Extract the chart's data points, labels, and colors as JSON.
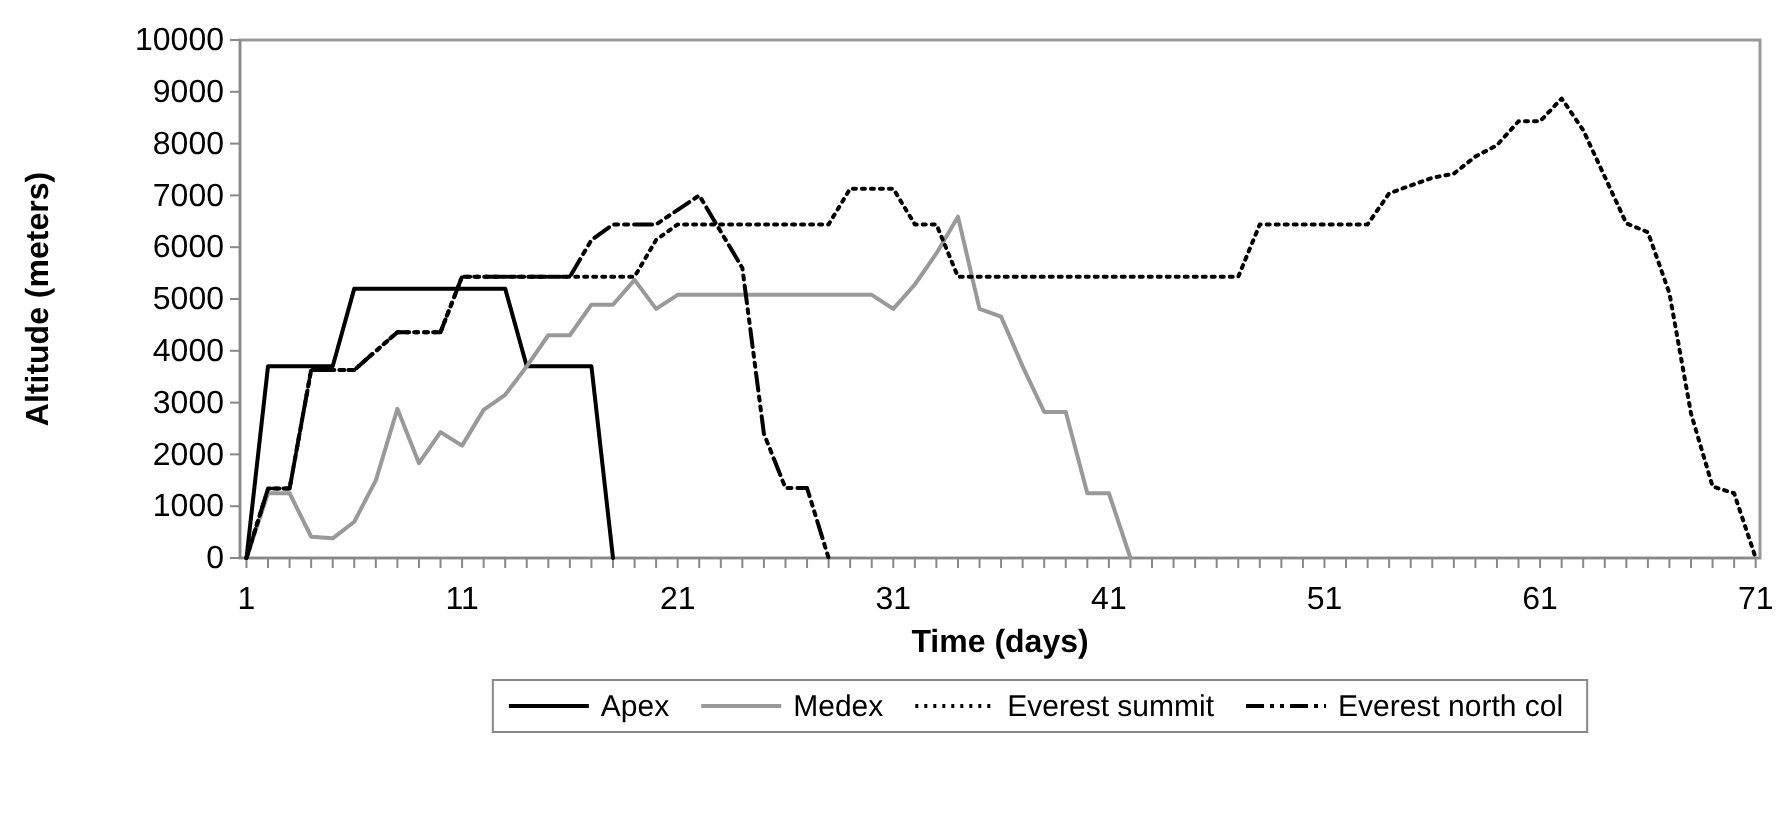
{
  "chart_data": {
    "type": "line",
    "xlabel": "Time (days)",
    "ylabel": "Altitude (meters)",
    "xlim": [
      0.7,
      71.2
    ],
    "xticks": [
      1,
      {
        "value": 2,
        "label": null
      },
      {
        "value": 3,
        "label": null
      },
      {
        "value": 4,
        "label": null
      },
      {
        "value": 5,
        "label": null
      },
      {
        "value": 6,
        "label": null
      },
      {
        "value": 7,
        "label": null
      },
      {
        "value": 8,
        "label": null
      },
      {
        "value": 9,
        "label": null
      },
      {
        "value": 10,
        "label": null
      },
      11,
      {
        "value": 12,
        "label": null
      },
      {
        "value": 13,
        "label": null
      },
      {
        "value": 14,
        "label": null
      },
      {
        "value": 15,
        "label": null
      },
      {
        "value": 16,
        "label": null
      },
      {
        "value": 17,
        "label": null
      },
      {
        "value": 18,
        "label": null
      },
      {
        "value": 19,
        "label": null
      },
      {
        "value": 20,
        "label": null
      },
      21,
      {
        "value": 22,
        "label": null
      },
      {
        "value": 23,
        "label": null
      },
      {
        "value": 24,
        "label": null
      },
      {
        "value": 25,
        "label": null
      },
      {
        "value": 26,
        "label": null
      },
      {
        "value": 27,
        "label": null
      },
      {
        "value": 28,
        "label": null
      },
      {
        "value": 29,
        "label": null
      },
      {
        "value": 30,
        "label": null
      },
      31,
      {
        "value": 32,
        "label": null
      },
      {
        "value": 33,
        "label": null
      },
      {
        "value": 34,
        "label": null
      },
      {
        "value": 35,
        "label": null
      },
      {
        "value": 36,
        "label": null
      },
      {
        "value": 37,
        "label": null
      },
      {
        "value": 38,
        "label": null
      },
      {
        "value": 39,
        "label": null
      },
      {
        "value": 40,
        "label": null
      },
      41,
      {
        "value": 42,
        "label": null
      },
      {
        "value": 43,
        "label": null
      },
      {
        "value": 44,
        "label": null
      },
      {
        "value": 45,
        "label": null
      },
      {
        "value": 46,
        "label": null
      },
      {
        "value": 47,
        "label": null
      },
      {
        "value": 48,
        "label": null
      },
      {
        "value": 49,
        "label": null
      },
      {
        "value": 50,
        "label": null
      },
      51,
      {
        "value": 52,
        "label": null
      },
      {
        "value": 53,
        "label": null
      },
      {
        "value": 54,
        "label": null
      },
      {
        "value": 55,
        "label": null
      },
      {
        "value": 56,
        "label": null
      },
      {
        "value": 57,
        "label": null
      },
      {
        "value": 58,
        "label": null
      },
      {
        "value": 59,
        "label": null
      },
      {
        "value": 60,
        "label": null
      },
      61,
      {
        "value": 62,
        "label": null
      },
      {
        "value": 63,
        "label": null
      },
      {
        "value": 64,
        "label": null
      },
      {
        "value": 65,
        "label": null
      },
      {
        "value": 66,
        "label": null
      },
      {
        "value": 67,
        "label": null
      },
      {
        "value": 68,
        "label": null
      },
      {
        "value": 69,
        "label": null
      },
      {
        "value": 70,
        "label": null
      },
      71
    ],
    "ylim": [
      0,
      10000
    ],
    "yticks": [
      0,
      1000,
      2000,
      3000,
      4000,
      5000,
      6000,
      7000,
      8000,
      9000,
      10000
    ],
    "grid": false,
    "legend": "bottom",
    "marker": "none",
    "series": [
      {
        "name": "Apex",
        "color": "#000000",
        "line_style": "solid",
        "x": [
          1,
          2,
          5,
          6,
          13,
          14,
          17,
          18
        ],
        "values": [
          0,
          3700,
          3700,
          5200,
          5200,
          3700,
          3700,
          0
        ]
      },
      {
        "name": "Medex",
        "color": "#999999",
        "line_style": "solid",
        "x": [
          1,
          2,
          3,
          4,
          5,
          6,
          7,
          8,
          9,
          10,
          11,
          12,
          13,
          14,
          15,
          16,
          17,
          18,
          19,
          20,
          21,
          30,
          31,
          32,
          33,
          34,
          35,
          36,
          37,
          38,
          39,
          40,
          41,
          42
        ],
        "values": [
          0,
          1250,
          1250,
          410,
          380,
          700,
          1500,
          2880,
          1830,
          2430,
          2170,
          2860,
          3150,
          3700,
          4300,
          4300,
          4890,
          4890,
          5370,
          4810,
          5080,
          5080,
          4810,
          5280,
          5880,
          6590,
          4810,
          4660,
          3700,
          2820,
          2820,
          1250,
          1250,
          0
        ]
      },
      {
        "name": "Everest summit",
        "color": "#000000",
        "line_style": "dotted",
        "x": [
          1,
          2,
          3,
          4,
          6,
          8,
          10,
          11,
          19,
          20,
          21,
          28,
          29,
          31,
          32,
          33,
          34,
          47,
          48,
          53,
          54,
          56,
          57,
          58,
          59,
          60,
          61,
          62,
          63,
          64,
          65,
          66,
          67,
          68,
          69,
          70,
          71
        ],
        "values": [
          0,
          1340,
          1340,
          3630,
          3630,
          4360,
          4360,
          5430,
          5430,
          6140,
          6440,
          6440,
          7130,
          7130,
          6440,
          6440,
          5430,
          5430,
          6440,
          6440,
          7040,
          7340,
          7420,
          7750,
          7970,
          8430,
          8430,
          8870,
          8260,
          7360,
          6460,
          6290,
          5110,
          2790,
          1380,
          1250,
          0
        ]
      },
      {
        "name": "Everest north col",
        "color": "#000000",
        "line_style": "dashed",
        "x": [
          1,
          2,
          3,
          4,
          6,
          8,
          10,
          11,
          16,
          17,
          18,
          20,
          22,
          24,
          25,
          26,
          27,
          28
        ],
        "values": [
          0,
          1340,
          1340,
          3630,
          3630,
          4360,
          4360,
          5430,
          5430,
          6140,
          6440,
          6440,
          7000,
          5600,
          2400,
          1350,
          1350,
          0
        ]
      }
    ]
  }
}
